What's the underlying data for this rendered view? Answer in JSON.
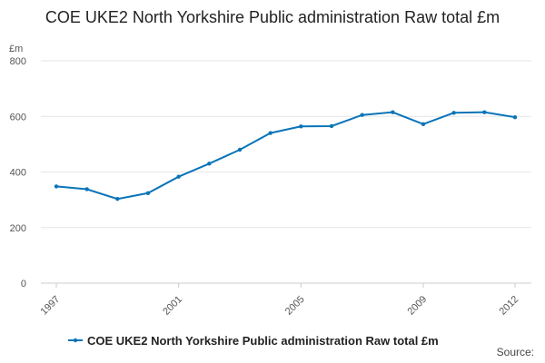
{
  "page": {
    "title": "COE UKE2 North Yorkshire Public administration Raw total £m",
    "source_label": "Source:"
  },
  "chart_data": {
    "type": "line",
    "title": "COE UKE2 North Yorkshire Public administration Raw total £m",
    "ylabel": "£m",
    "xlabel": "",
    "ylim": [
      0,
      800
    ],
    "yticks": [
      0,
      200,
      400,
      600,
      800
    ],
    "xlim": [
      1997,
      2012
    ],
    "xticks": [
      1997,
      2001,
      2005,
      2009,
      2012
    ],
    "grid": true,
    "legend_position": "bottom",
    "series": [
      {
        "name": "COE UKE2 North Yorkshire Public administration Raw total £m",
        "color": "#0a74b8",
        "x": [
          1997,
          1998,
          1999,
          2000,
          2001,
          2002,
          2003,
          2004,
          2005,
          2006,
          2007,
          2008,
          2009,
          2010,
          2011,
          2012
        ],
        "values": [
          348,
          338,
          303,
          324,
          383,
          430,
          480,
          540,
          564,
          565,
          605,
          615,
          572,
          613,
          615,
          597
        ]
      }
    ]
  }
}
